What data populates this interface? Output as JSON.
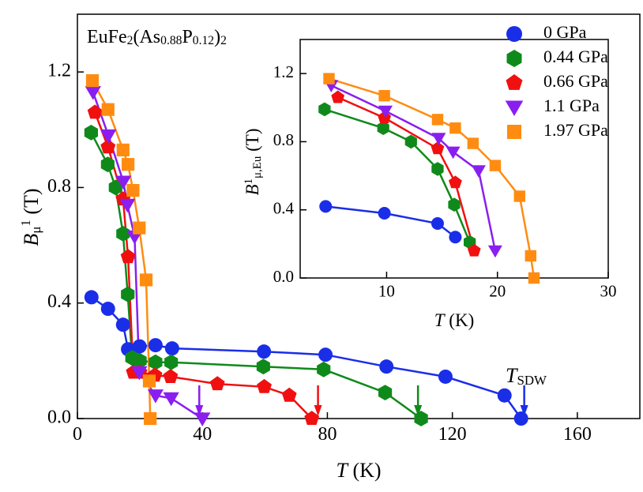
{
  "chart_data": [
    {
      "type": "scatter",
      "title_parts": [
        {
          "t": "EuFe",
          "s": ""
        },
        {
          "t": "2",
          "s": "sub"
        },
        {
          "t": "(As",
          "s": ""
        },
        {
          "t": "0.88",
          "s": "sub"
        },
        {
          "t": "P",
          "s": ""
        },
        {
          "t": "0.12",
          "s": "sub"
        },
        {
          "t": ")",
          "s": ""
        },
        {
          "t": "2",
          "s": "sub"
        }
      ],
      "xlabel_parts": [
        {
          "t": "T",
          "s": "i"
        },
        {
          "t": " (K)",
          "s": ""
        }
      ],
      "ylabel_parts": [
        {
          "t": "B",
          "s": "i"
        },
        {
          "t": "μ",
          "s": "sub"
        },
        {
          "t": "1",
          "s": "sup"
        },
        {
          "t": " (T)",
          "s": ""
        }
      ],
      "xlim": [
        0,
        180
      ],
      "xticks": [
        0,
        40,
        80,
        120,
        160
      ],
      "ylim": [
        0,
        1.4
      ],
      "yticks": [
        {
          "value": 0,
          "label": "0.0"
        },
        0.4,
        0.8,
        1.2
      ],
      "series": [
        {
          "name": "0 GPa",
          "color": "#1a2ee8",
          "marker": "circle",
          "x": [
            4.5,
            9.8,
            14.6,
            16.2,
            19.9,
            25,
            30.3,
            59.7,
            79.4,
            98.9,
            117.8,
            136.7,
            142
          ],
          "values": [
            0.42,
            0.38,
            0.325,
            0.24,
            0.25,
            0.254,
            0.243,
            0.232,
            0.221,
            0.18,
            0.145,
            0.08,
            0
          ]
        },
        {
          "name": "0.44 GPa",
          "color": "#0f8a1a",
          "marker": "hexagon",
          "x": [
            4.4,
            9.7,
            12.2,
            14.6,
            16.1,
            17.5,
            20,
            25,
            30,
            59.5,
            78.8,
            98.5,
            110
          ],
          "values": [
            0.99,
            0.88,
            0.8,
            0.64,
            0.43,
            0.21,
            0.2,
            0.195,
            0.195,
            0.18,
            0.17,
            0.09,
            0
          ]
        },
        {
          "name": "0.66 GPa",
          "color": "#f01010",
          "marker": "pentagon",
          "x": [
            5.6,
            9.8,
            14.6,
            16.2,
            17.9,
            20,
            24.8,
            29.8,
            44.8,
            59.8,
            67.8,
            75
          ],
          "values": [
            1.06,
            0.94,
            0.76,
            0.56,
            0.16,
            0.16,
            0.15,
            0.145,
            0.12,
            0.11,
            0.08,
            0
          ]
        },
        {
          "name": "1.1 GPa",
          "color": "#8a1ef0",
          "marker": "triangle-down",
          "x": [
            5,
            9.9,
            14.7,
            16,
            18.3,
            19.8,
            25,
            30,
            40
          ],
          "values": [
            1.13,
            0.98,
            0.82,
            0.74,
            0.63,
            0.16,
            0.08,
            0.07,
            0
          ]
        },
        {
          "name": "1.97 GPa",
          "color": "#ff8c10",
          "marker": "square",
          "x": [
            4.8,
            9.8,
            14.6,
            16.2,
            17.8,
            19.8,
            22,
            23,
            23.3
          ],
          "values": [
            1.17,
            1.07,
            0.93,
            0.88,
            0.79,
            0.66,
            0.48,
            0.13,
            0
          ]
        }
      ],
      "arrows": [
        {
          "x": 39,
          "color": "#8a1ef0"
        },
        {
          "x": 77,
          "color": "#f01010"
        },
        {
          "x": 109,
          "color": "#0f8a1a"
        },
        {
          "x": 143,
          "color": "#1a2ee8"
        }
      ],
      "annotation_parts": [
        {
          "t": "T",
          "s": "i"
        },
        {
          "t": "SDW",
          "s": "sub"
        }
      ]
    },
    {
      "type": "scatter",
      "xlabel_parts": [
        {
          "t": "T",
          "s": "i"
        },
        {
          "t": " (K)",
          "s": ""
        }
      ],
      "ylabel_parts": [
        {
          "t": "B",
          "s": "i"
        },
        {
          "t": "1",
          "s": "sup"
        },
        {
          "t": "μ,Eu",
          "s": "sub"
        },
        {
          "t": " (T)",
          "s": ""
        }
      ],
      "xlim": [
        2.2,
        30
      ],
      "xticks": [
        10,
        20,
        30
      ],
      "ylim": [
        0,
        1.4
      ],
      "yticks": [
        {
          "value": 0,
          "label": "0.0"
        },
        0.4,
        0.8,
        1.2
      ],
      "series": [
        {
          "color": "#1a2ee8",
          "marker": "circle",
          "x": [
            4.5,
            9.8,
            14.6,
            16.2
          ],
          "values": [
            0.42,
            0.38,
            0.32,
            0.24
          ]
        },
        {
          "color": "#0f8a1a",
          "marker": "hexagon",
          "x": [
            4.4,
            9.7,
            12.2,
            14.6,
            16.1,
            17.5
          ],
          "values": [
            0.99,
            0.88,
            0.8,
            0.64,
            0.43,
            0.21
          ]
        },
        {
          "color": "#f01010",
          "marker": "pentagon",
          "x": [
            5.6,
            9.8,
            14.6,
            16.2,
            17.9
          ],
          "values": [
            1.06,
            0.94,
            0.76,
            0.56,
            0.16
          ]
        },
        {
          "color": "#8a1ef0",
          "marker": "triangle-down",
          "x": [
            5,
            9.9,
            14.7,
            16,
            18.3,
            19.8
          ],
          "values": [
            1.13,
            0.98,
            0.82,
            0.74,
            0.63,
            0.16
          ]
        },
        {
          "color": "#ff8c10",
          "marker": "square",
          "x": [
            4.8,
            9.8,
            14.6,
            16.2,
            17.8,
            19.8,
            22,
            23,
            23.3
          ],
          "values": [
            1.17,
            1.07,
            0.93,
            0.88,
            0.79,
            0.66,
            0.48,
            0.13,
            0
          ]
        }
      ]
    }
  ]
}
